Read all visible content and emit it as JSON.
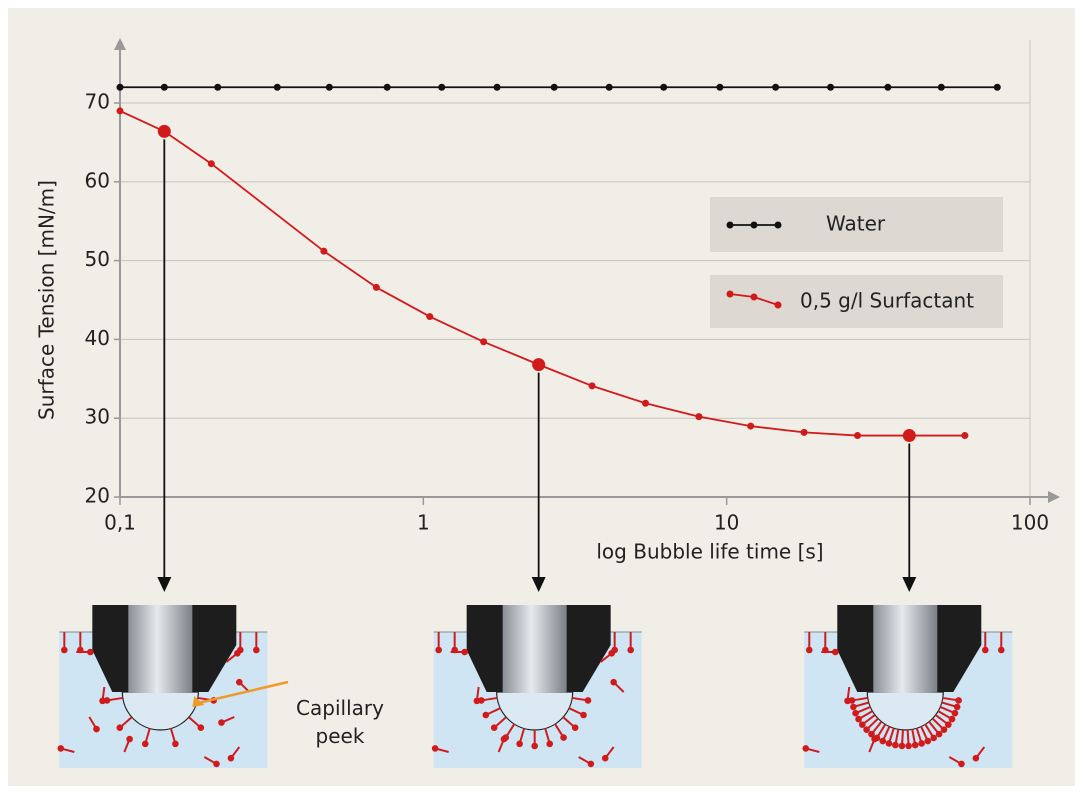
{
  "chart_data": {
    "type": "line",
    "xlabel": "log Bubble life time [s]",
    "ylabel": "Surface Tension [mN/m]",
    "xscale": "log",
    "xlim": [
      0.1,
      100
    ],
    "ylim": [
      20,
      78
    ],
    "xticks": [
      {
        "value": 0.1,
        "label": "0,1"
      },
      1,
      10,
      100
    ],
    "yticks": [
      20,
      30,
      40,
      50,
      60,
      70
    ],
    "grid": true,
    "series": [
      {
        "name": "Water",
        "color": "#111111",
        "x": [
          0.1,
          0.14,
          0.21,
          0.33,
          0.49,
          0.76,
          1.15,
          1.75,
          2.7,
          4.1,
          6.2,
          9.5,
          14.5,
          22,
          34,
          51,
          78
        ],
        "values": [
          72,
          72,
          72,
          72,
          72,
          72,
          72,
          72,
          72,
          72,
          72,
          72,
          72,
          72,
          72,
          72,
          72
        ]
      },
      {
        "name": "0,5 g/l Surfactant",
        "color": "#d11a1a",
        "x": [
          0.1,
          0.14,
          0.2,
          0.47,
          0.7,
          1.05,
          1.58,
          2.4,
          3.6,
          5.4,
          8.1,
          12,
          18,
          27,
          40,
          61
        ],
        "values": [
          69,
          66.4,
          62.3,
          51.2,
          46.6,
          42.9,
          39.7,
          36.8,
          34.1,
          31.9,
          30.2,
          29,
          28.2,
          27.8,
          27.8,
          27.8
        ],
        "highlight_points": [
          1,
          7,
          14
        ]
      }
    ],
    "annotation": "Capillary peek"
  }
}
